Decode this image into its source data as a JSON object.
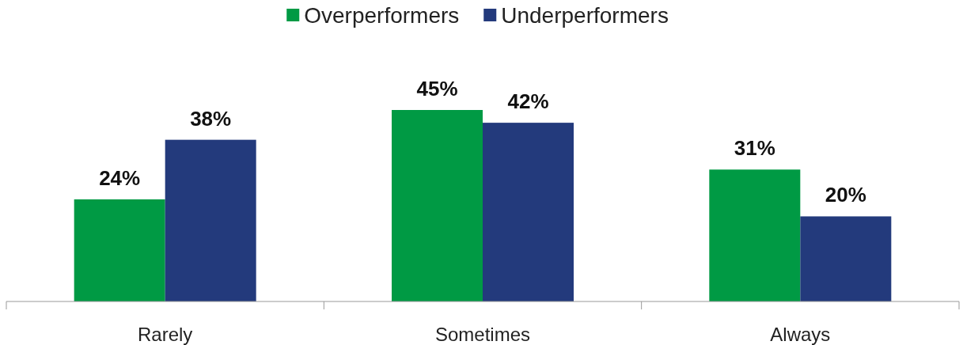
{
  "chart_data": {
    "type": "bar",
    "categories": [
      "Rarely",
      "Sometimes",
      "Always"
    ],
    "legend": "top",
    "series": [
      {
        "name": "Overperformers",
        "color": "#009a44",
        "values": [
          24,
          45,
          31
        ],
        "value_labels": [
          "24%",
          "45%",
          "31%"
        ]
      },
      {
        "name": "Underperformers",
        "color": "#233a7c",
        "values": [
          38,
          42,
          20
        ],
        "value_labels": [
          "38%",
          "42%",
          "20%"
        ]
      }
    ]
  }
}
